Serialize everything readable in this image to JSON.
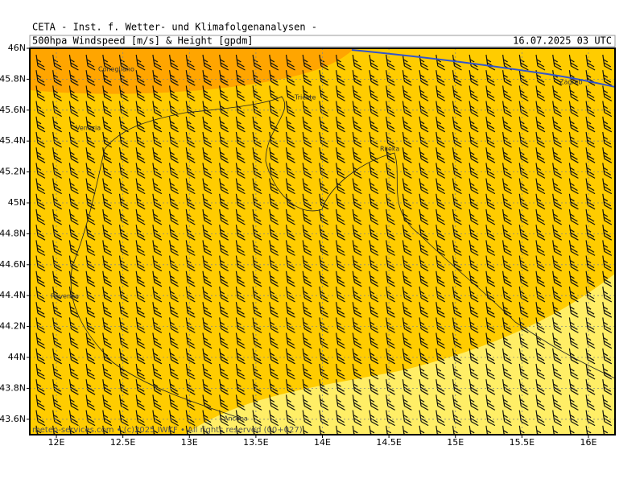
{
  "header": {
    "title": "CETA - Inst. f. Wetter- und Klimafolgenanalysen -",
    "subtitle": "500hpa Windspeed [m/s] & Height [gpdm]",
    "date": "16.07.2025 03 UTC"
  },
  "map": {
    "lat_range": [
      43.5,
      46
    ],
    "lon_range": [
      11.8,
      16.2
    ],
    "lat_ticks": [
      {
        "value": 46,
        "label": "46N"
      },
      {
        "value": 45.8,
        "label": "45.8N"
      },
      {
        "value": 45.6,
        "label": "45.6N"
      },
      {
        "value": 45.4,
        "label": "45.4N"
      },
      {
        "value": 45.2,
        "label": "45.2N"
      },
      {
        "value": 45,
        "label": "45N"
      },
      {
        "value": 44.8,
        "label": "44.8N"
      },
      {
        "value": 44.6,
        "label": "44.6N"
      },
      {
        "value": 44.4,
        "label": "44.4N"
      },
      {
        "value": 44.2,
        "label": "44.2N"
      },
      {
        "value": 44,
        "label": "44N"
      },
      {
        "value": 43.8,
        "label": "43.8N"
      },
      {
        "value": 43.6,
        "label": "43.6N"
      }
    ],
    "lon_ticks": [
      {
        "value": 12,
        "label": "12E"
      },
      {
        "value": 12.5,
        "label": "12.5E"
      },
      {
        "value": 13,
        "label": "13E"
      },
      {
        "value": 13.5,
        "label": "13.5E"
      },
      {
        "value": 14,
        "label": "14E"
      },
      {
        "value": 14.5,
        "label": "14.5E"
      },
      {
        "value": 15,
        "label": "15E"
      },
      {
        "value": 15.5,
        "label": "15.5E"
      },
      {
        "value": 16,
        "label": "16E"
      }
    ],
    "cities": [
      "Conegliano",
      "Trieste",
      "Venezia",
      "Rijeka",
      "Zagreb",
      "Ravenna",
      "Ancona"
    ]
  },
  "footer": "meteo-services.com • (c)2025 IWKF • All rights reserved (00+027)"
}
